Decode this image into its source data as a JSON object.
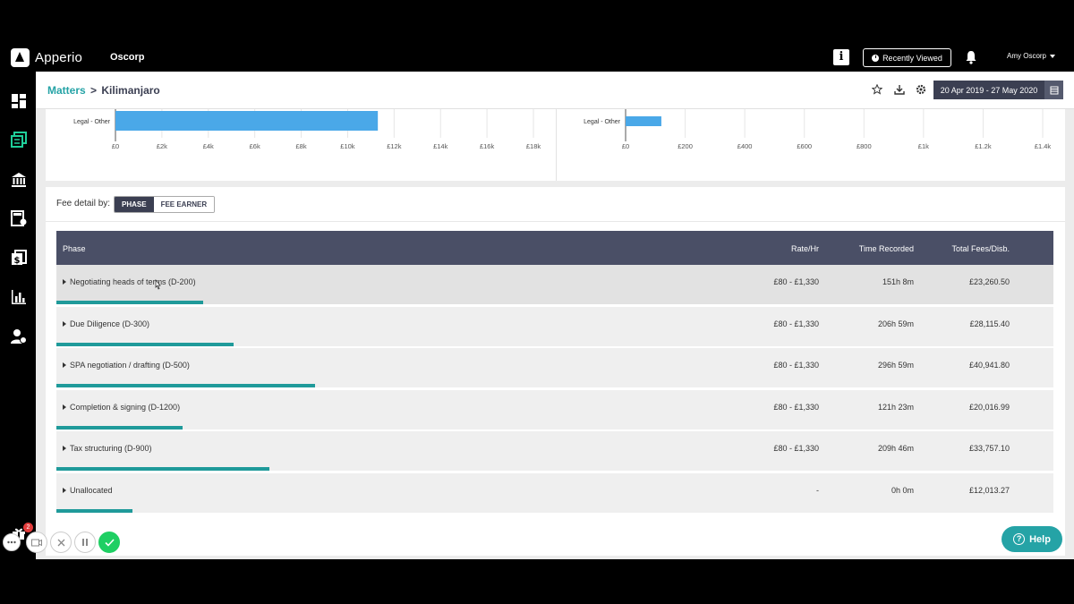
{
  "app": {
    "logo_text": "Apperio",
    "client": "Oscorp",
    "info_label": "i",
    "recently_viewed": "Recently Viewed",
    "user": "Amy Oscorp"
  },
  "breadcrumb": {
    "parent": "Matters",
    "separator": ">",
    "current": "Kilimanjaro"
  },
  "date_range": "20 Apr 2019 - 27 May 2020",
  "chart_data": [
    {
      "type": "bar",
      "orientation": "horizontal",
      "categories": [
        "Legal - Other"
      ],
      "values": [
        11300
      ],
      "xlim": [
        0,
        18000
      ],
      "x_ticks": [
        "£0",
        "£2k",
        "£4k",
        "£6k",
        "£8k",
        "£10k",
        "£12k",
        "£14k",
        "£16k",
        "£18k"
      ],
      "color": "#4aa8e8"
    },
    {
      "type": "bar",
      "orientation": "horizontal",
      "categories": [
        "Legal - Other"
      ],
      "values": [
        120
      ],
      "xlim": [
        0,
        1400
      ],
      "x_ticks": [
        "£0",
        "£200",
        "£400",
        "£600",
        "£800",
        "£1k",
        "£1.2k",
        "£1.4k"
      ],
      "color": "#4aa8e8"
    }
  ],
  "fee_detail": {
    "label": "Fee detail by:",
    "toggle": [
      "PHASE",
      "FEE EARNER"
    ],
    "active": "PHASE"
  },
  "table": {
    "headers": {
      "phase": "Phase",
      "rate": "Rate/Hr",
      "time": "Time Recorded",
      "fees": "Total Fees/Disb."
    },
    "rows": [
      {
        "name": "Negotiating heads of terms (D-200)",
        "rate": "£80 - £1,330",
        "time": "151h 8m",
        "fees": "£23,260.50",
        "fee_value": 23260.5
      },
      {
        "name": "Due Diligence (D-300)",
        "rate": "£80 - £1,330",
        "time": "206h 59m",
        "fees": "£28,115.40",
        "fee_value": 28115.4
      },
      {
        "name": "SPA negotiation / drafting (D-500)",
        "rate": "£80 - £1,330",
        "time": "296h 59m",
        "fees": "£40,941.80",
        "fee_value": 40941.8
      },
      {
        "name": "Completion & signing (D-1200)",
        "rate": "£80 - £1,330",
        "time": "121h 23m",
        "fees": "£20,016.99",
        "fee_value": 20016.99
      },
      {
        "name": "Tax structuring (D-900)",
        "rate": "£80 - £1,330",
        "time": "209h 46m",
        "fees": "£33,757.10",
        "fee_value": 33757.1
      },
      {
        "name": "Unallocated",
        "rate": "-",
        "time": "0h 0m",
        "fees": "£12,013.27",
        "fee_value": 12013.27
      }
    ]
  },
  "help_label": "Help",
  "gift_badge": "2",
  "colors": {
    "accent": "#25a3a6",
    "header_dark": "#4a4f66",
    "bar": "#1f9a9a",
    "chart_bar": "#4aa8e8"
  }
}
